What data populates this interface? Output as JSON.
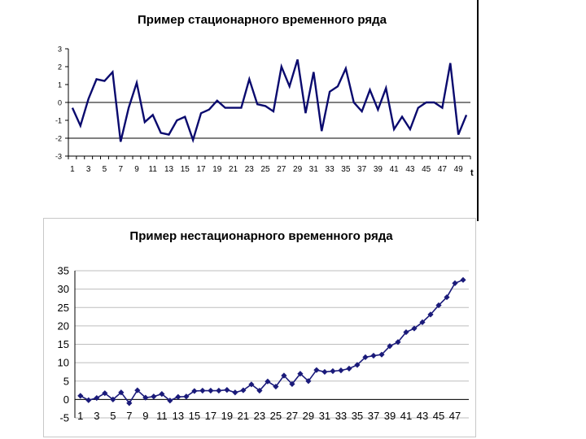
{
  "chart_data": [
    {
      "type": "line",
      "title": "Пример стационарного временного ряда",
      "xlabel": "t",
      "ylabel": "",
      "ylim": [
        -3,
        3
      ],
      "yticks": [
        3,
        2,
        1,
        0,
        -1,
        -2,
        -3
      ],
      "x": [
        1,
        2,
        3,
        4,
        5,
        6,
        7,
        8,
        9,
        10,
        11,
        12,
        13,
        14,
        15,
        16,
        17,
        18,
        19,
        20,
        21,
        22,
        23,
        24,
        25,
        26,
        27,
        28,
        29,
        30,
        31,
        32,
        33,
        34,
        35,
        36,
        37,
        38,
        39,
        40,
        41,
        42,
        43,
        44,
        45,
        46,
        47,
        48,
        49,
        50
      ],
      "xticks": [
        "1",
        "3",
        "5",
        "7",
        "9",
        "11",
        "13",
        "15",
        "17",
        "19",
        "21",
        "23",
        "25",
        "27",
        "29",
        "31",
        "33",
        "35",
        "37",
        "39",
        "41",
        "43",
        "45",
        "47",
        "49"
      ],
      "series": [
        {
          "values": [
            -0.3,
            -1.3,
            0.2,
            1.3,
            1.2,
            1.7,
            -2.2,
            -0.3,
            1.1,
            -1.1,
            -0.7,
            -1.7,
            -1.8,
            -1.0,
            -0.8,
            -2.1,
            -0.6,
            -0.4,
            0.1,
            -0.3,
            -0.3,
            -0.3,
            1.3,
            -0.1,
            -0.2,
            -0.5,
            2.0,
            0.9,
            2.4,
            -0.6,
            1.7,
            -1.6,
            0.6,
            0.9,
            1.9,
            0.0,
            -0.5,
            0.7,
            -0.4,
            0.8,
            -1.5,
            -0.8,
            -1.5,
            -0.3,
            0.0,
            0.0,
            -0.3,
            2.2,
            -1.8,
            -0.7
          ],
          "color": "#0a0a6e"
        }
      ],
      "grid": false,
      "reference_lines": [
        0,
        -2
      ]
    },
    {
      "type": "line",
      "title": "Пример нестационарного временного ряда",
      "xlabel": "",
      "ylabel": "",
      "ylim": [
        -5,
        35
      ],
      "yticks": [
        35,
        30,
        25,
        20,
        15,
        10,
        5,
        0,
        -5
      ],
      "x": [
        1,
        2,
        3,
        4,
        5,
        6,
        7,
        8,
        9,
        10,
        11,
        12,
        13,
        14,
        15,
        16,
        17,
        18,
        19,
        20,
        21,
        22,
        23,
        24,
        25,
        26,
        27,
        28,
        29,
        30,
        31,
        32,
        33,
        34,
        35,
        36,
        37,
        38,
        39,
        40,
        41,
        42,
        43,
        44,
        45,
        46,
        47,
        48
      ],
      "xticks": [
        "1",
        "3",
        "5",
        "7",
        "9",
        "11",
        "13",
        "15",
        "17",
        "19",
        "21",
        "23",
        "25",
        "27",
        "29",
        "31",
        "33",
        "35",
        "37",
        "39",
        "41",
        "43",
        "45",
        "47"
      ],
      "series": [
        {
          "values": [
            1.0,
            -0.2,
            0.4,
            1.7,
            0.0,
            1.9,
            -1.0,
            2.5,
            0.5,
            0.8,
            1.5,
            -0.3,
            0.7,
            0.8,
            2.3,
            2.4,
            2.4,
            2.4,
            2.6,
            1.9,
            2.5,
            4.1,
            2.4,
            4.9,
            3.5,
            6.5,
            4.2,
            7.0,
            5.0,
            8.0,
            7.5,
            7.7,
            7.9,
            8.4,
            9.4,
            11.5,
            11.9,
            12.2,
            14.5,
            15.6,
            18.3,
            19.3,
            21.0,
            23.1,
            25.6,
            27.8,
            31.6,
            32.5
          ],
          "color": "#1a1a7a",
          "marker": "diamond"
        }
      ],
      "grid": "horizontal"
    }
  ]
}
